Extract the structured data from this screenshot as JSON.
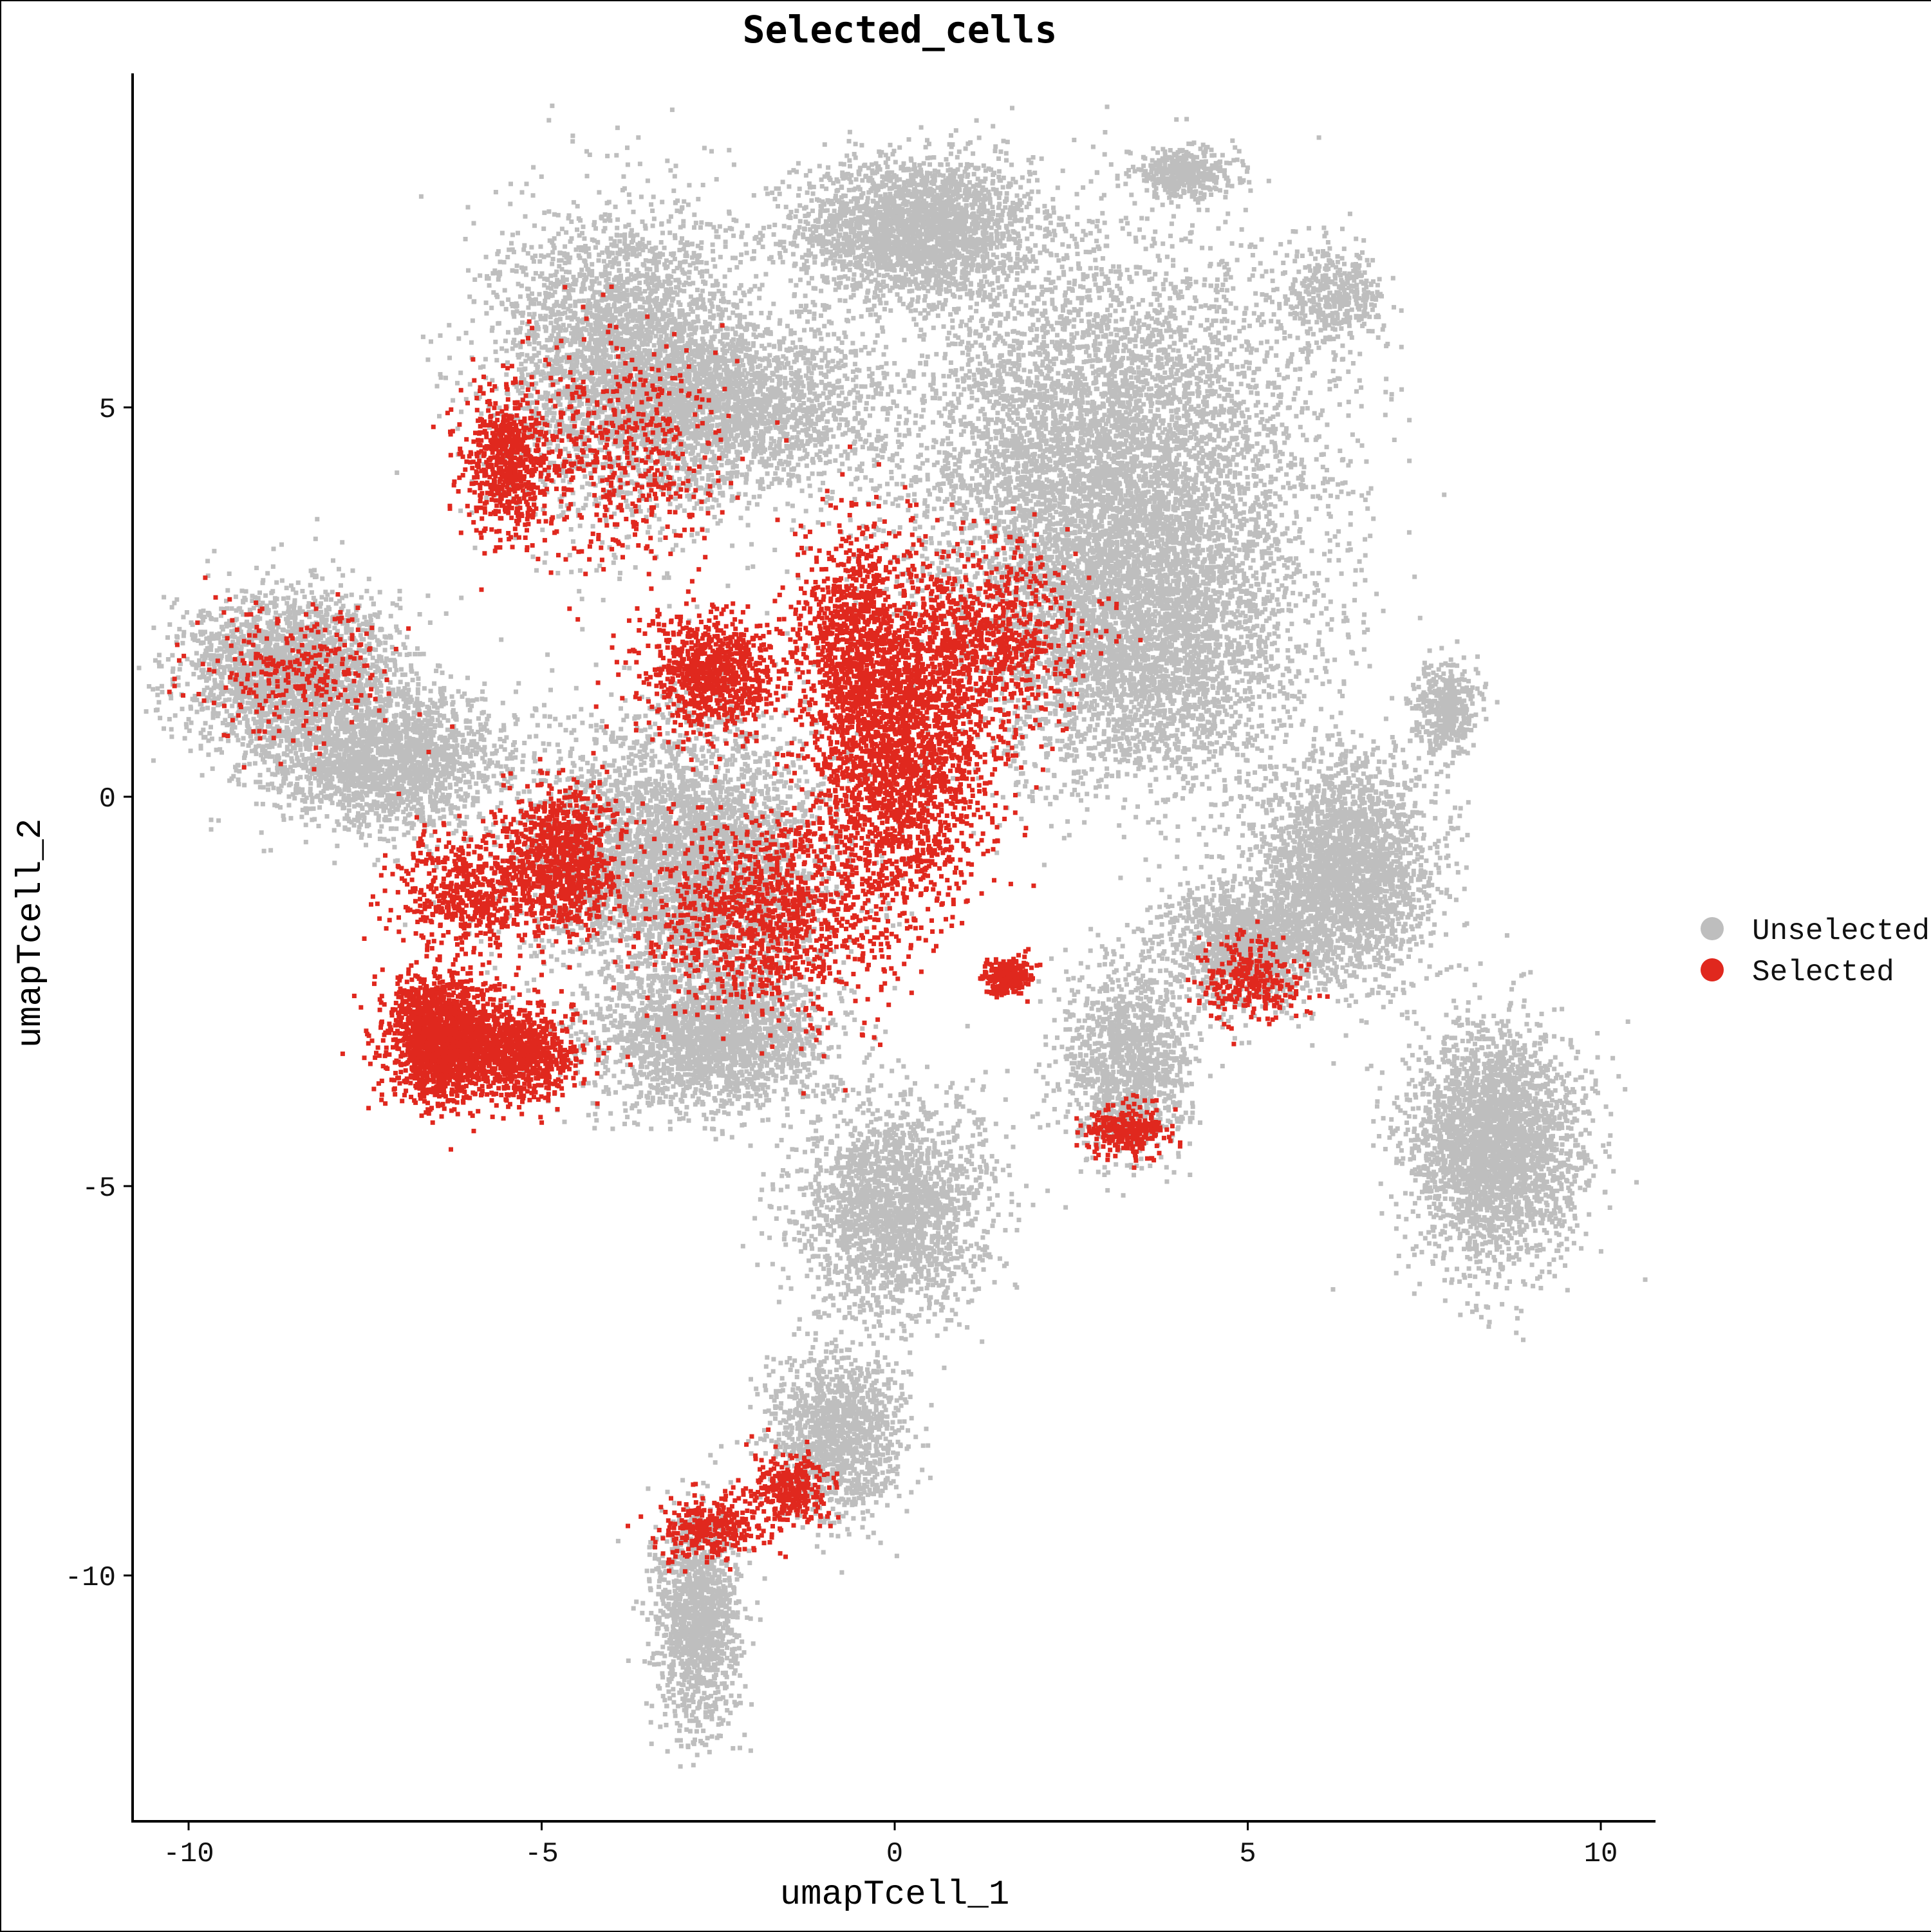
{
  "chart_data": {
    "type": "scatter",
    "title": "Selected_cells",
    "xlabel": "umapTcell_1",
    "ylabel": "umapTcell_2",
    "xlim": [
      -10.8,
      10.8
    ],
    "ylim": [
      -13.0,
      9.5
    ],
    "x_ticks": [
      -10,
      -5,
      0,
      5,
      10
    ],
    "y_ticks": [
      -10,
      -5,
      0,
      5
    ],
    "x_tick_labels": [
      "-10",
      "-5",
      "0",
      "5",
      "10"
    ],
    "y_tick_labels": [
      "-10",
      "-5",
      "0",
      "5"
    ],
    "grid": false,
    "legend_position": "right",
    "colors": {
      "Unselected": "#BEBEBE",
      "Selected": "#E0281E"
    },
    "series": [
      {
        "name": "Unselected",
        "color": "#BEBEBE",
        "clusters": [
          {
            "cx": 0.3,
            "cy": 7.3,
            "sx": 1.1,
            "sy": 0.6,
            "w": 6
          },
          {
            "cx": 4.1,
            "cy": 8.0,
            "sx": 0.5,
            "sy": 0.2,
            "w": 1
          },
          {
            "cx": 6.2,
            "cy": 6.4,
            "sx": 0.5,
            "sy": 0.4,
            "w": 1
          },
          {
            "cx": -3.8,
            "cy": 5.6,
            "sx": 1.2,
            "sy": 1.3,
            "w": 8
          },
          {
            "cx": -2.0,
            "cy": 5.0,
            "sx": 1.2,
            "sy": 0.7,
            "w": 4
          },
          {
            "cx": 3.0,
            "cy": 4.3,
            "sx": 1.9,
            "sy": 1.8,
            "w": 14
          },
          {
            "cx": 3.5,
            "cy": 2.0,
            "sx": 1.5,
            "sy": 1.3,
            "w": 8
          },
          {
            "cx": -8.6,
            "cy": 1.6,
            "sx": 1.0,
            "sy": 0.7,
            "w": 5
          },
          {
            "cx": -7.2,
            "cy": 0.5,
            "sx": 1.1,
            "sy": 0.6,
            "w": 5
          },
          {
            "cx": -3.0,
            "cy": -0.8,
            "sx": 1.4,
            "sy": 1.2,
            "w": 9
          },
          {
            "cx": -2.6,
            "cy": -3.1,
            "sx": 1.1,
            "sy": 0.6,
            "w": 5
          },
          {
            "cx": 0.0,
            "cy": -5.3,
            "sx": 0.9,
            "sy": 0.9,
            "w": 5
          },
          {
            "cx": 6.4,
            "cy": -0.9,
            "sx": 0.8,
            "sy": 0.9,
            "w": 6
          },
          {
            "cx": 5.0,
            "cy": -1.9,
            "sx": 0.8,
            "sy": 0.5,
            "w": 3
          },
          {
            "cx": 7.8,
            "cy": 1.1,
            "sx": 0.3,
            "sy": 0.4,
            "w": 1
          },
          {
            "cx": 8.5,
            "cy": -4.5,
            "sx": 0.8,
            "sy": 1.0,
            "w": 7
          },
          {
            "cx": 3.3,
            "cy": -3.4,
            "sx": 0.6,
            "sy": 0.8,
            "w": 3
          },
          {
            "cx": -0.8,
            "cy": -8.2,
            "sx": 0.6,
            "sy": 0.7,
            "w": 3
          },
          {
            "cx": -2.8,
            "cy": -10.6,
            "sx": 0.4,
            "sy": 0.9,
            "w": 3
          }
        ]
      },
      {
        "name": "Selected",
        "color": "#E0281E",
        "clusters": [
          {
            "cx": -6.4,
            "cy": -3.1,
            "sx": 0.5,
            "sy": 0.5,
            "w": 6
          },
          {
            "cx": -5.4,
            "cy": -3.3,
            "sx": 0.6,
            "sy": 0.4,
            "w": 3
          },
          {
            "cx": -4.7,
            "cy": -0.8,
            "sx": 0.5,
            "sy": 0.6,
            "w": 3
          },
          {
            "cx": -6.0,
            "cy": -1.2,
            "sx": 0.7,
            "sy": 0.5,
            "w": 2
          },
          {
            "cx": 0.1,
            "cy": 0.5,
            "sx": 0.8,
            "sy": 1.3,
            "w": 7
          },
          {
            "cx": -0.6,
            "cy": 2.0,
            "sx": 0.5,
            "sy": 1.0,
            "w": 3
          },
          {
            "cx": 1.3,
            "cy": 2.0,
            "sx": 0.9,
            "sy": 0.8,
            "w": 3
          },
          {
            "cx": -2.6,
            "cy": 1.6,
            "sx": 0.6,
            "sy": 0.5,
            "w": 3
          },
          {
            "cx": -1.8,
            "cy": -1.5,
            "sx": 1.2,
            "sy": 0.9,
            "w": 4
          },
          {
            "cx": -5.5,
            "cy": 4.3,
            "sx": 0.4,
            "sy": 0.6,
            "w": 2
          },
          {
            "cx": -4.0,
            "cy": 4.4,
            "sx": 1.1,
            "sy": 1.0,
            "w": 2
          },
          {
            "cx": -8.4,
            "cy": 1.6,
            "sx": 0.9,
            "sy": 0.6,
            "w": 1
          },
          {
            "cx": 1.6,
            "cy": -2.3,
            "sx": 0.2,
            "sy": 0.15,
            "w": 1
          },
          {
            "cx": 3.3,
            "cy": -4.3,
            "sx": 0.4,
            "sy": 0.2,
            "w": 1
          },
          {
            "cx": 5.0,
            "cy": -2.3,
            "sx": 0.5,
            "sy": 0.4,
            "w": 1
          },
          {
            "cx": -2.6,
            "cy": -9.4,
            "sx": 0.5,
            "sy": 0.3,
            "w": 1
          },
          {
            "cx": -1.5,
            "cy": -8.9,
            "sx": 0.4,
            "sy": 0.3,
            "w": 1
          }
        ]
      }
    ]
  }
}
